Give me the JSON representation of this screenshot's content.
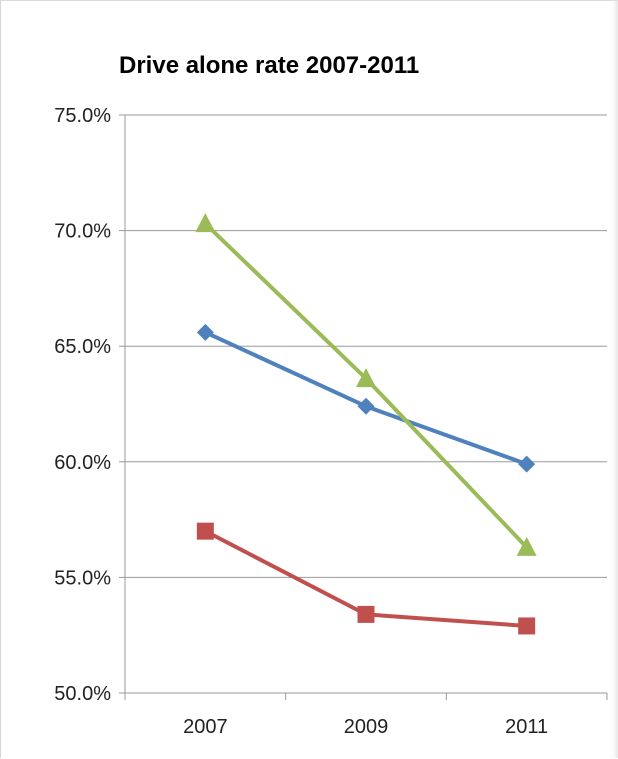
{
  "chart_data": {
    "type": "line",
    "title": "Drive alone rate 2007-2011",
    "xlabel": "",
    "ylabel": "",
    "categories": [
      "2007",
      "2009",
      "2011"
    ],
    "ylim": [
      50.0,
      75.0
    ],
    "y_ticks": [
      "75.0%",
      "70.0%",
      "65.0%",
      "60.0%",
      "55.0%",
      "50.0%"
    ],
    "y_tick_values": [
      75.0,
      70.0,
      65.0,
      60.0,
      55.0,
      50.0
    ],
    "grid": true,
    "legend": "none",
    "series": [
      {
        "color": "#4f81bd",
        "marker": "diamond",
        "values": [
          65.6,
          62.4,
          59.9
        ]
      },
      {
        "color": "#c0504d",
        "marker": "square",
        "values": [
          57.0,
          53.4,
          52.9
        ]
      },
      {
        "color": "#9bbb59",
        "marker": "triangle",
        "values": [
          70.3,
          63.6,
          56.3
        ]
      }
    ]
  }
}
